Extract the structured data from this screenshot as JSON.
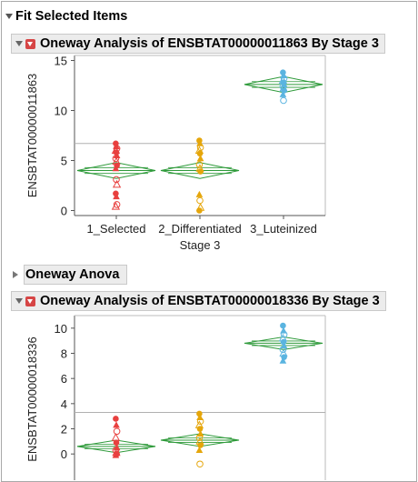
{
  "outline": {
    "title": "Fit Selected Items"
  },
  "report1": {
    "title": "Oneway Analysis of ENSBTAT00000011863 By Stage 3"
  },
  "report2": {
    "title": "Oneway Analysis of ENSBTAT00000018336 By Stage 3"
  },
  "anova": {
    "title": "Oneway Anova"
  },
  "colors": {
    "selected": "#e8403f",
    "differentiated": "#e5a60b",
    "luteinized": "#5ab4e0",
    "diamond": "#2e9a3a",
    "grand_mean": "#b0b0b0"
  },
  "chart_data": [
    {
      "type": "scatter",
      "title": "",
      "xlabel": "Stage 3",
      "ylabel": "ENSBTAT00000011863",
      "categories": [
        "1_Selected",
        "2_Differentiated",
        "3_Luteinized"
      ],
      "yticks": [
        "0",
        "5",
        "10",
        "15"
      ],
      "ylim": [
        -0.5,
        15.5
      ],
      "grand_mean": 6.7,
      "means": [
        4.0,
        4.0,
        12.6
      ],
      "ci_half": [
        0.8,
        0.8,
        0.8
      ],
      "series": [
        {
          "values": [
            6.7,
            6.4,
            6.2,
            6.0,
            5.8,
            5.5,
            5.2,
            4.9,
            4.5,
            4.2,
            3.1,
            2.6,
            1.7,
            1.4,
            0.6,
            0.4
          ]
        },
        {
          "values": [
            7.0,
            6.7,
            6.3,
            6.0,
            5.7,
            5.2,
            4.6,
            4.2,
            3.9,
            1.6,
            1.0,
            0.3,
            0.0
          ]
        },
        {
          "values": [
            13.8,
            13.5,
            13.2,
            13.0,
            12.8,
            12.6,
            12.4,
            12.2,
            12.0,
            11.6,
            11.0
          ]
        }
      ]
    },
    {
      "type": "scatter",
      "title": "",
      "xlabel": "",
      "ylabel": "ENSBTAT00000018336",
      "categories": [
        "1_Selected",
        "2_Differentiated",
        "3_Luteinized"
      ],
      "yticks": [
        "0",
        "2",
        "4",
        "6",
        "8",
        "10"
      ],
      "ylim": [
        -2.3,
        11.0
      ],
      "grand_mean": 3.3,
      "means": [
        0.6,
        1.1,
        8.8
      ],
      "ci_half": [
        0.5,
        0.5,
        0.5
      ],
      "series": [
        {
          "values": [
            2.8,
            2.3,
            1.8,
            1.3,
            0.9,
            0.5,
            0.3,
            0.1,
            0.0,
            -0.1
          ]
        },
        {
          "values": [
            3.2,
            2.9,
            2.6,
            2.3,
            2.0,
            1.6,
            1.3,
            1.0,
            0.7,
            0.3,
            -0.8
          ]
        },
        {
          "values": [
            10.2,
            9.8,
            9.5,
            9.2,
            8.9,
            8.6,
            8.3,
            8.0,
            7.7,
            7.4
          ]
        }
      ]
    }
  ]
}
